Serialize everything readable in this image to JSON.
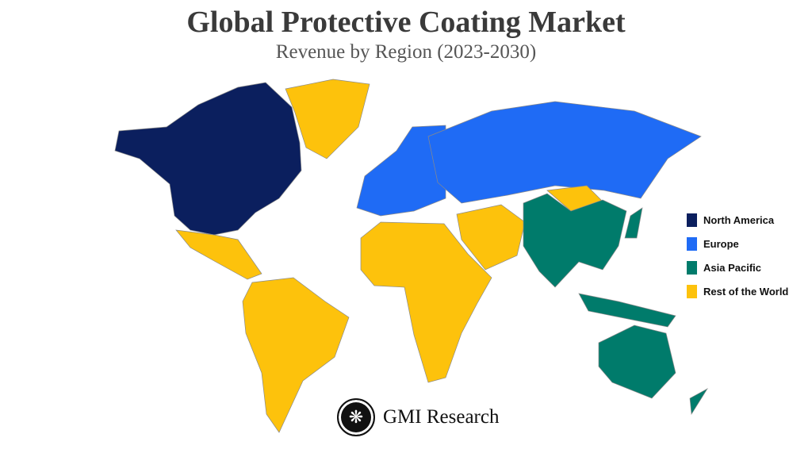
{
  "title": "Global Protective Coating Market",
  "subtitle": "Revenue by Region (2023-2030)",
  "legend": [
    {
      "label": "North America",
      "color": "#0b1f5e"
    },
    {
      "label": "Europe",
      "color": "#1f6bf5"
    },
    {
      "label": "Asia Pacific",
      "color": "#007b6b"
    },
    {
      "label": "Rest of the World",
      "color": "#fdc20c"
    }
  ],
  "logo": {
    "text": "GMI Research",
    "icon": "fan-palm-icon"
  }
}
